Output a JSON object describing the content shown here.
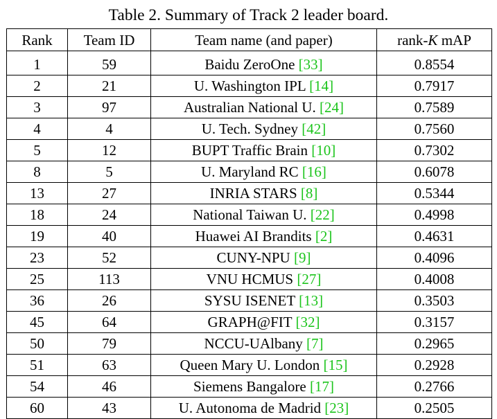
{
  "caption": "Table 2. Summary of Track 2 leader board.",
  "colors": {
    "citation": "#1bc41b",
    "text": "#000000",
    "rule": "#000000"
  },
  "header": {
    "rank": "Rank",
    "team_id": "Team ID",
    "team_name": "Team name (and paper)",
    "map_prefix": "rank-",
    "map_k": "K",
    "map_suffix": " mAP"
  },
  "rows": [
    {
      "rank": "1",
      "team_id": "59",
      "name": "Baidu ZeroOne ",
      "ref_open": "[",
      "ref": "33",
      "ref_close": "]",
      "map": "0.8554"
    },
    {
      "rank": "2",
      "team_id": "21",
      "name": "U. Washington IPL ",
      "ref_open": "[",
      "ref": "14",
      "ref_close": "]",
      "map": "0.7917"
    },
    {
      "rank": "3",
      "team_id": "97",
      "name": "Australian National U. ",
      "ref_open": "[",
      "ref": "24",
      "ref_close": "]",
      "map": "0.7589"
    },
    {
      "rank": "4",
      "team_id": "4",
      "name": "U. Tech. Sydney ",
      "ref_open": "[",
      "ref": "42",
      "ref_close": "]",
      "map": "0.7560"
    },
    {
      "rank": "5",
      "team_id": "12",
      "name": "BUPT Traffic Brain ",
      "ref_open": "[",
      "ref": "10",
      "ref_close": "]",
      "map": "0.7302"
    },
    {
      "rank": "8",
      "team_id": "5",
      "name": "U. Maryland RC ",
      "ref_open": "[",
      "ref": "16",
      "ref_close": "]",
      "map": "0.6078"
    },
    {
      "rank": "13",
      "team_id": "27",
      "name": "INRIA STARS ",
      "ref_open": "[",
      "ref": "8",
      "ref_close": "]",
      "map": "0.5344"
    },
    {
      "rank": "18",
      "team_id": "24",
      "name": "National Taiwan U. ",
      "ref_open": "[",
      "ref": "22",
      "ref_close": "]",
      "map": "0.4998"
    },
    {
      "rank": "19",
      "team_id": "40",
      "name": "Huawei AI Brandits ",
      "ref_open": "[",
      "ref": "2",
      "ref_close": "]",
      "map": "0.4631"
    },
    {
      "rank": "23",
      "team_id": "52",
      "name": "CUNY-NPU ",
      "ref_open": "[",
      "ref": "9",
      "ref_close": "]",
      "map": "0.4096"
    },
    {
      "rank": "25",
      "team_id": "113",
      "name": "VNU HCMUS ",
      "ref_open": "[",
      "ref": "27",
      "ref_close": "]",
      "map": "0.4008"
    },
    {
      "rank": "36",
      "team_id": "26",
      "name": "SYSU ISENET ",
      "ref_open": "[",
      "ref": "13",
      "ref_close": "]",
      "map": "0.3503"
    },
    {
      "rank": "45",
      "team_id": "64",
      "name": "GRAPH@FIT ",
      "ref_open": "[",
      "ref": "32",
      "ref_close": "]",
      "map": "0.3157"
    },
    {
      "rank": "50",
      "team_id": "79",
      "name": "NCCU-UAlbany ",
      "ref_open": "[",
      "ref": "7",
      "ref_close": "]",
      "map": "0.2965"
    },
    {
      "rank": "51",
      "team_id": "63",
      "name": "Queen Mary U. London ",
      "ref_open": "[",
      "ref": "15",
      "ref_close": "]",
      "map": "0.2928"
    },
    {
      "rank": "54",
      "team_id": "46",
      "name": "Siemens Bangalore ",
      "ref_open": "[",
      "ref": "17",
      "ref_close": "]",
      "map": "0.2766"
    },
    {
      "rank": "60",
      "team_id": "43",
      "name": "U. Autonoma de Madrid ",
      "ref_open": "[",
      "ref": "23",
      "ref_close": "]",
      "map": "0.2505"
    }
  ]
}
